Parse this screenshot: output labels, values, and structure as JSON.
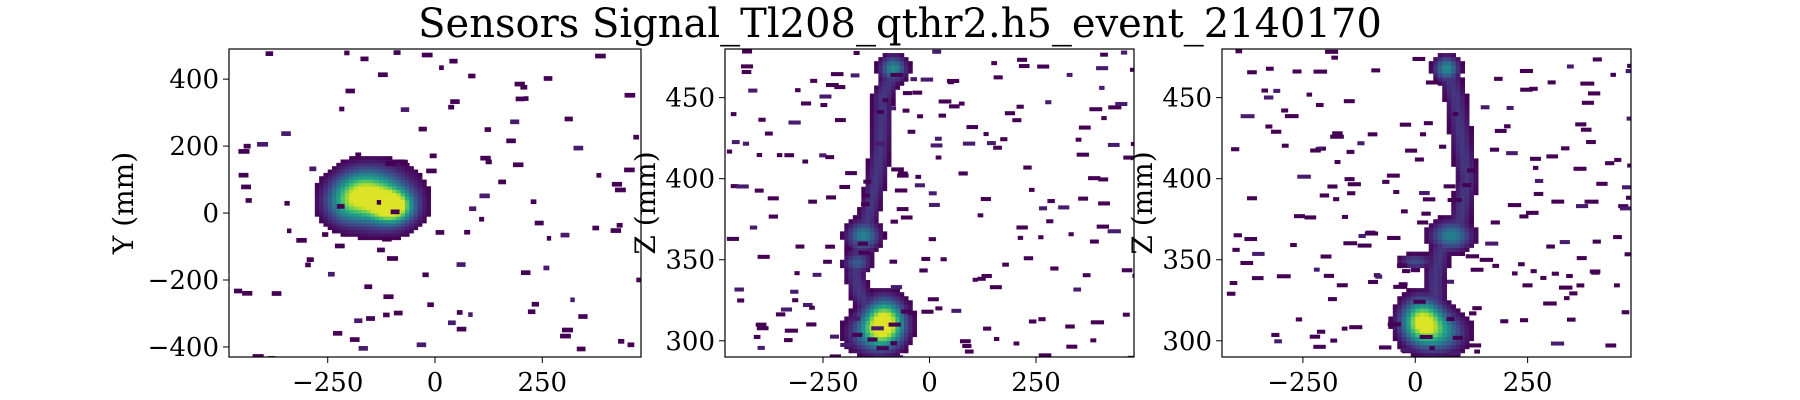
{
  "figure": {
    "title": "Sensors Signal_Tl208_qthr2.h5_event_2140170"
  },
  "chart_data": [
    {
      "type": "heatmap",
      "colormap": "viridis",
      "xlabel": "",
      "ylabel": "Y (mm)",
      "xlim": [
        -480,
        480
      ],
      "ylim": [
        -430,
        490
      ],
      "xticks": [
        -250,
        0,
        250
      ],
      "yticks": [
        -400,
        -200,
        0,
        200,
        400
      ],
      "cell": [
        10,
        10
      ],
      "track": {
        "blobs": [
          {
            "x": -170,
            "y": 60,
            "sx": 45,
            "sy": 45,
            "peak": 0.75
          },
          {
            "x": -120,
            "y": 40,
            "sx": 55,
            "sy": 60,
            "peak": 0.45
          },
          {
            "x": -100,
            "y": 20,
            "sx": 30,
            "sy": 30,
            "peak": 1.0
          },
          {
            "x": -210,
            "y": 20,
            "sx": 35,
            "sy": 40,
            "peak": 0.3
          }
        ],
        "threshold": 0.06
      },
      "noise": {
        "count": 110,
        "seed": 11,
        "cell": [
          20,
          14
        ]
      }
    },
    {
      "type": "heatmap",
      "colormap": "viridis",
      "xlabel": "",
      "ylabel": "Z (mm)",
      "xlim": [
        -480,
        480
      ],
      "ylim": [
        290,
        480
      ],
      "xticks": [
        -250,
        0,
        250
      ],
      "yticks": [
        300,
        350,
        400,
        450
      ],
      "cell": [
        10,
        2.5
      ],
      "track": {
        "path": [
          [
            -80,
            470
          ],
          [
            -110,
            450
          ],
          [
            -115,
            420
          ],
          [
            -125,
            400
          ],
          [
            -145,
            375
          ],
          [
            -155,
            365
          ],
          [
            -165,
            350
          ],
          [
            -175,
            342
          ],
          [
            -165,
            330
          ],
          [
            -140,
            318
          ],
          [
            -105,
            312
          ]
        ],
        "blobs": [
          {
            "x": -85,
            "y": 468,
            "sx": 20,
            "sy": 5,
            "peak": 0.55
          },
          {
            "x": -155,
            "y": 365,
            "sx": 25,
            "sy": 6,
            "peak": 0.5
          },
          {
            "x": -170,
            "y": 348,
            "sx": 20,
            "sy": 4,
            "peak": 0.35
          },
          {
            "x": -105,
            "y": 312,
            "sx": 30,
            "sy": 9,
            "peak": 1.0
          },
          {
            "x": -130,
            "y": 305,
            "sx": 40,
            "sy": 8,
            "peak": 0.45
          }
        ],
        "threshold": 0.06
      },
      "noise": {
        "count": 200,
        "seed": 23,
        "cell": [
          24,
          2.5
        ]
      }
    },
    {
      "type": "heatmap",
      "colormap": "viridis",
      "xlabel": "",
      "ylabel": "Z (mm)",
      "xlim": [
        -430,
        480
      ],
      "ylim": [
        290,
        480
      ],
      "xticks": [
        -250,
        0,
        250
      ],
      "yticks": [
        300,
        350,
        400,
        450
      ],
      "cell": [
        10,
        2.5
      ],
      "track": {
        "path": [
          [
            70,
            470
          ],
          [
            90,
            450
          ],
          [
            105,
            420
          ],
          [
            115,
            400
          ],
          [
            100,
            375
          ],
          [
            80,
            365
          ],
          [
            55,
            355
          ],
          [
            45,
            340
          ],
          [
            45,
            325
          ],
          [
            25,
            315
          ]
        ],
        "blobs": [
          {
            "x": 70,
            "y": 468,
            "sx": 18,
            "sy": 5,
            "peak": 0.55
          },
          {
            "x": 80,
            "y": 365,
            "sx": 30,
            "sy": 6,
            "peak": 0.5
          },
          {
            "x": 0,
            "y": 349,
            "sx": 25,
            "sy": 3,
            "peak": 0.3
          },
          {
            "x": 15,
            "y": 312,
            "sx": 30,
            "sy": 9,
            "peak": 1.0
          },
          {
            "x": 60,
            "y": 305,
            "sx": 35,
            "sy": 8,
            "peak": 0.45
          }
        ],
        "threshold": 0.06
      },
      "noise": {
        "count": 190,
        "seed": 41,
        "cell": [
          24,
          2.5
        ]
      }
    }
  ]
}
